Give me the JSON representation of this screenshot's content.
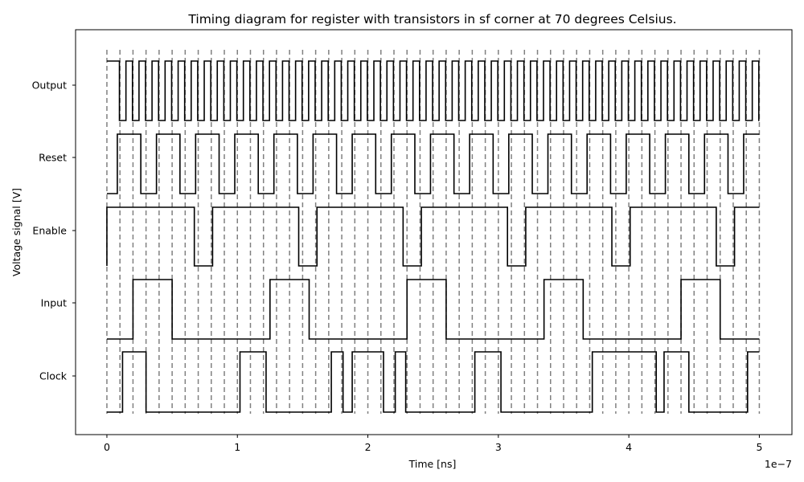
{
  "chart_data": {
    "type": "line",
    "title": "Timing diagram for register with transistors in sf corner at 70 degrees Celsius.",
    "xlabel": "Time [ns]",
    "ylabel": "Voltage signal [V]",
    "x_offset_label": "1e−7",
    "xlim": [
      -2.4e-08,
      5.25e-07
    ],
    "x_ticks": [
      0,
      1e-07,
      2e-07,
      3e-07,
      4e-07,
      5e-07
    ],
    "x_tick_labels": [
      "0",
      "1",
      "2",
      "3",
      "4",
      "5"
    ],
    "grid": false,
    "line_color": "#000000",
    "guide_color": "#808080",
    "guide_lines": [
      0,
      1e-08,
      2e-08,
      3e-08,
      4e-08,
      5e-08,
      6e-08,
      7e-08,
      8e-08,
      9e-08,
      1e-07,
      1.1e-07,
      1.2e-07,
      1.3e-07,
      1.4e-07,
      1.5e-07,
      1.6e-07,
      1.7e-07,
      1.8e-07,
      1.9e-07,
      2e-07,
      2.1e-07,
      2.2e-07,
      2.3e-07,
      2.4e-07,
      2.5e-07,
      2.6e-07,
      2.7e-07,
      2.8e-07,
      2.9e-07,
      3e-07,
      3.1e-07,
      3.2e-07,
      3.3e-07,
      3.4e-07,
      3.5e-07,
      3.6e-07,
      3.7e-07,
      3.8e-07,
      3.9e-07,
      4e-07,
      4.1e-07,
      4.2e-07,
      4.3e-07,
      4.4e-07,
      4.5e-07,
      4.6e-07,
      4.7e-07,
      4.8e-07,
      4.9e-07,
      5e-07
    ],
    "series": [
      {
        "name": "Output",
        "initial": 1,
        "edges": [
          9.6e-09,
          1.46e-08,
          1.96e-08,
          2.46e-08,
          2.96e-08,
          3.46e-08,
          3.96e-08,
          4.46e-08,
          4.96e-08,
          5.46e-08,
          5.96e-08,
          6.46e-08,
          6.96e-08,
          7.46e-08,
          7.96e-08,
          8.46e-08,
          8.96e-08,
          9.46e-08,
          9.96e-08,
          1.046e-07,
          1.096e-07,
          1.146e-07,
          1.196e-07,
          1.246e-07,
          1.296e-07,
          1.346e-07,
          1.396e-07,
          1.446e-07,
          1.496e-07,
          1.546e-07,
          1.596e-07,
          1.646e-07,
          1.696e-07,
          1.746e-07,
          1.796e-07,
          1.846e-07,
          1.896e-07,
          1.946e-07,
          1.996e-07,
          2.046e-07,
          2.096e-07,
          2.146e-07,
          2.196e-07,
          2.246e-07,
          2.296e-07,
          2.346e-07,
          2.396e-07,
          2.446e-07,
          2.496e-07,
          2.546e-07,
          2.596e-07,
          2.646e-07,
          2.696e-07,
          2.746e-07,
          2.796e-07,
          2.846e-07,
          2.896e-07,
          2.946e-07,
          2.996e-07,
          3.046e-07,
          3.096e-07,
          3.146e-07,
          3.196e-07,
          3.246e-07,
          3.296e-07,
          3.346e-07,
          3.396e-07,
          3.446e-07,
          3.496e-07,
          3.546e-07,
          3.596e-07,
          3.646e-07,
          3.696e-07,
          3.746e-07,
          3.796e-07,
          3.846e-07,
          3.896e-07,
          3.946e-07,
          3.996e-07,
          4.046e-07,
          4.096e-07,
          4.146e-07,
          4.196e-07,
          4.246e-07,
          4.296e-07,
          4.346e-07,
          4.396e-07,
          4.446e-07,
          4.496e-07,
          4.546e-07,
          4.596e-07,
          4.646e-07,
          4.696e-07,
          4.746e-07,
          4.796e-07,
          4.846e-07,
          4.896e-07,
          4.946e-07,
          4.996e-07
        ]
      },
      {
        "name": "Reset",
        "initial": 0,
        "edges": [
          8e-09,
          2.6e-08,
          3.8e-08,
          5.6e-08,
          6.8e-08,
          8.6e-08,
          9.8e-08,
          1.16e-07,
          1.28e-07,
          1.46e-07,
          1.58e-07,
          1.76e-07,
          1.88e-07,
          2.06e-07,
          2.18e-07,
          2.36e-07,
          2.48e-07,
          2.66e-07,
          2.78e-07,
          2.96e-07,
          3.08e-07,
          3.26e-07,
          3.38e-07,
          3.56e-07,
          3.68e-07,
          3.86e-07,
          3.98e-07,
          4.16e-07,
          4.28e-07,
          4.46e-07,
          4.58e-07,
          4.76e-07,
          4.88e-07
        ]
      },
      {
        "name": "Enable",
        "initial": 0,
        "edges": [
          0,
          6.7e-08,
          8.1e-08,
          1.47e-07,
          1.61e-07,
          2.27e-07,
          2.41e-07,
          3.07e-07,
          3.21e-07,
          3.87e-07,
          4.01e-07,
          4.67e-07,
          4.81e-07
        ]
      },
      {
        "name": "Input",
        "initial": 0,
        "edges": [
          2e-08,
          5e-08,
          1.25e-07,
          1.55e-07,
          2.3e-07,
          2.6e-07,
          3.35e-07,
          3.65e-07,
          4.4e-07,
          4.7e-07
        ]
      },
      {
        "name": "Clock",
        "initial": 0,
        "edges": [
          1.2e-08,
          3e-08,
          1.02e-07,
          1.22e-07,
          1.72e-07,
          1.81e-07,
          1.88e-07,
          2.12e-07,
          2.21e-07,
          2.29e-07,
          2.82e-07,
          3.02e-07,
          3.72e-07,
          4.21e-07,
          4.27e-07,
          4.46e-07,
          4.91e-07
        ]
      }
    ]
  }
}
